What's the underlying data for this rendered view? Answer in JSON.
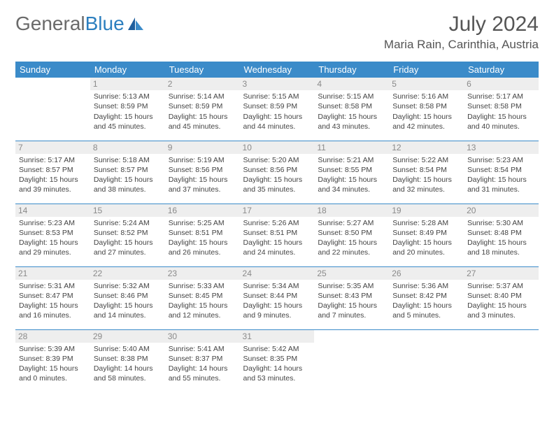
{
  "logo": {
    "text1": "General",
    "text2": "Blue"
  },
  "header": {
    "month_title": "July 2024",
    "location": "Maria Rain, Carinthia, Austria"
  },
  "colors": {
    "header_bg": "#3b8bc9",
    "header_text": "#ffffff",
    "daynum_bg": "#eeeeee",
    "daynum_text": "#8a8a8a",
    "border": "#3b8bc9",
    "logo_grey": "#6a6a6a",
    "logo_blue": "#2c7fbf"
  },
  "weekdays": [
    "Sunday",
    "Monday",
    "Tuesday",
    "Wednesday",
    "Thursday",
    "Friday",
    "Saturday"
  ],
  "weeks": [
    [
      null,
      {
        "n": "1",
        "sr": "Sunrise: 5:13 AM",
        "ss": "Sunset: 8:59 PM",
        "d1": "Daylight: 15 hours",
        "d2": "and 45 minutes."
      },
      {
        "n": "2",
        "sr": "Sunrise: 5:14 AM",
        "ss": "Sunset: 8:59 PM",
        "d1": "Daylight: 15 hours",
        "d2": "and 45 minutes."
      },
      {
        "n": "3",
        "sr": "Sunrise: 5:15 AM",
        "ss": "Sunset: 8:59 PM",
        "d1": "Daylight: 15 hours",
        "d2": "and 44 minutes."
      },
      {
        "n": "4",
        "sr": "Sunrise: 5:15 AM",
        "ss": "Sunset: 8:58 PM",
        "d1": "Daylight: 15 hours",
        "d2": "and 43 minutes."
      },
      {
        "n": "5",
        "sr": "Sunrise: 5:16 AM",
        "ss": "Sunset: 8:58 PM",
        "d1": "Daylight: 15 hours",
        "d2": "and 42 minutes."
      },
      {
        "n": "6",
        "sr": "Sunrise: 5:17 AM",
        "ss": "Sunset: 8:58 PM",
        "d1": "Daylight: 15 hours",
        "d2": "and 40 minutes."
      }
    ],
    [
      {
        "n": "7",
        "sr": "Sunrise: 5:17 AM",
        "ss": "Sunset: 8:57 PM",
        "d1": "Daylight: 15 hours",
        "d2": "and 39 minutes."
      },
      {
        "n": "8",
        "sr": "Sunrise: 5:18 AM",
        "ss": "Sunset: 8:57 PM",
        "d1": "Daylight: 15 hours",
        "d2": "and 38 minutes."
      },
      {
        "n": "9",
        "sr": "Sunrise: 5:19 AM",
        "ss": "Sunset: 8:56 PM",
        "d1": "Daylight: 15 hours",
        "d2": "and 37 minutes."
      },
      {
        "n": "10",
        "sr": "Sunrise: 5:20 AM",
        "ss": "Sunset: 8:56 PM",
        "d1": "Daylight: 15 hours",
        "d2": "and 35 minutes."
      },
      {
        "n": "11",
        "sr": "Sunrise: 5:21 AM",
        "ss": "Sunset: 8:55 PM",
        "d1": "Daylight: 15 hours",
        "d2": "and 34 minutes."
      },
      {
        "n": "12",
        "sr": "Sunrise: 5:22 AM",
        "ss": "Sunset: 8:54 PM",
        "d1": "Daylight: 15 hours",
        "d2": "and 32 minutes."
      },
      {
        "n": "13",
        "sr": "Sunrise: 5:23 AM",
        "ss": "Sunset: 8:54 PM",
        "d1": "Daylight: 15 hours",
        "d2": "and 31 minutes."
      }
    ],
    [
      {
        "n": "14",
        "sr": "Sunrise: 5:23 AM",
        "ss": "Sunset: 8:53 PM",
        "d1": "Daylight: 15 hours",
        "d2": "and 29 minutes."
      },
      {
        "n": "15",
        "sr": "Sunrise: 5:24 AM",
        "ss": "Sunset: 8:52 PM",
        "d1": "Daylight: 15 hours",
        "d2": "and 27 minutes."
      },
      {
        "n": "16",
        "sr": "Sunrise: 5:25 AM",
        "ss": "Sunset: 8:51 PM",
        "d1": "Daylight: 15 hours",
        "d2": "and 26 minutes."
      },
      {
        "n": "17",
        "sr": "Sunrise: 5:26 AM",
        "ss": "Sunset: 8:51 PM",
        "d1": "Daylight: 15 hours",
        "d2": "and 24 minutes."
      },
      {
        "n": "18",
        "sr": "Sunrise: 5:27 AM",
        "ss": "Sunset: 8:50 PM",
        "d1": "Daylight: 15 hours",
        "d2": "and 22 minutes."
      },
      {
        "n": "19",
        "sr": "Sunrise: 5:28 AM",
        "ss": "Sunset: 8:49 PM",
        "d1": "Daylight: 15 hours",
        "d2": "and 20 minutes."
      },
      {
        "n": "20",
        "sr": "Sunrise: 5:30 AM",
        "ss": "Sunset: 8:48 PM",
        "d1": "Daylight: 15 hours",
        "d2": "and 18 minutes."
      }
    ],
    [
      {
        "n": "21",
        "sr": "Sunrise: 5:31 AM",
        "ss": "Sunset: 8:47 PM",
        "d1": "Daylight: 15 hours",
        "d2": "and 16 minutes."
      },
      {
        "n": "22",
        "sr": "Sunrise: 5:32 AM",
        "ss": "Sunset: 8:46 PM",
        "d1": "Daylight: 15 hours",
        "d2": "and 14 minutes."
      },
      {
        "n": "23",
        "sr": "Sunrise: 5:33 AM",
        "ss": "Sunset: 8:45 PM",
        "d1": "Daylight: 15 hours",
        "d2": "and 12 minutes."
      },
      {
        "n": "24",
        "sr": "Sunrise: 5:34 AM",
        "ss": "Sunset: 8:44 PM",
        "d1": "Daylight: 15 hours",
        "d2": "and 9 minutes."
      },
      {
        "n": "25",
        "sr": "Sunrise: 5:35 AM",
        "ss": "Sunset: 8:43 PM",
        "d1": "Daylight: 15 hours",
        "d2": "and 7 minutes."
      },
      {
        "n": "26",
        "sr": "Sunrise: 5:36 AM",
        "ss": "Sunset: 8:42 PM",
        "d1": "Daylight: 15 hours",
        "d2": "and 5 minutes."
      },
      {
        "n": "27",
        "sr": "Sunrise: 5:37 AM",
        "ss": "Sunset: 8:40 PM",
        "d1": "Daylight: 15 hours",
        "d2": "and 3 minutes."
      }
    ],
    [
      {
        "n": "28",
        "sr": "Sunrise: 5:39 AM",
        "ss": "Sunset: 8:39 PM",
        "d1": "Daylight: 15 hours",
        "d2": "and 0 minutes."
      },
      {
        "n": "29",
        "sr": "Sunrise: 5:40 AM",
        "ss": "Sunset: 8:38 PM",
        "d1": "Daylight: 14 hours",
        "d2": "and 58 minutes."
      },
      {
        "n": "30",
        "sr": "Sunrise: 5:41 AM",
        "ss": "Sunset: 8:37 PM",
        "d1": "Daylight: 14 hours",
        "d2": "and 55 minutes."
      },
      {
        "n": "31",
        "sr": "Sunrise: 5:42 AM",
        "ss": "Sunset: 8:35 PM",
        "d1": "Daylight: 14 hours",
        "d2": "and 53 minutes."
      },
      null,
      null,
      null
    ]
  ]
}
